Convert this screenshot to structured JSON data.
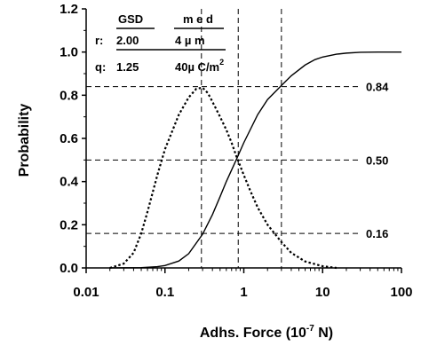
{
  "chart_data": {
    "type": "line",
    "xlabel": "Adhs. Force (10",
    "xlabel_exp": "-7",
    "xlabel_unit": " N)",
    "ylabel": "Probability",
    "x_scale": "log",
    "xlim": [
      0.01,
      100
    ],
    "ylim": [
      0.0,
      1.2
    ],
    "x_ticks": [
      "0.01",
      "0.1",
      "1",
      "10",
      "100"
    ],
    "y_ticks": [
      "0.0",
      "0.2",
      "0.4",
      "0.6",
      "0.8",
      "1.0",
      "1.2"
    ],
    "grid": false,
    "series": [
      {
        "style": "solid",
        "x": [
          0.02,
          0.05,
          0.08,
          0.1,
          0.15,
          0.2,
          0.3,
          0.4,
          0.5,
          0.6,
          0.8,
          1.0,
          1.5,
          2.0,
          3.0,
          4.0,
          6.0,
          8.0,
          10,
          15,
          20,
          30,
          50,
          100
        ],
        "y": [
          0.0,
          0.001,
          0.006,
          0.011,
          0.032,
          0.066,
          0.156,
          0.247,
          0.33,
          0.4,
          0.5,
          0.58,
          0.71,
          0.78,
          0.845,
          0.89,
          0.94,
          0.965,
          0.977,
          0.99,
          0.995,
          0.999,
          1.0,
          1.0
        ]
      },
      {
        "style": "dotted",
        "x": [
          0.02,
          0.03,
          0.04,
          0.05,
          0.06,
          0.08,
          0.1,
          0.15,
          0.2,
          0.25,
          0.3,
          0.35,
          0.4,
          0.5,
          0.6,
          0.7,
          0.8,
          1.0,
          1.2,
          1.5,
          2.0,
          3.0,
          4.0,
          6.0,
          10,
          15
        ],
        "y": [
          0.0,
          0.02,
          0.07,
          0.16,
          0.26,
          0.43,
          0.55,
          0.71,
          0.79,
          0.83,
          0.835,
          0.81,
          0.77,
          0.7,
          0.64,
          0.58,
          0.52,
          0.43,
          0.36,
          0.28,
          0.2,
          0.12,
          0.07,
          0.03,
          0.008,
          0.0
        ]
      }
    ],
    "reference_lines": {
      "horizontal": [
        {
          "y": 0.84,
          "label": "0.84"
        },
        {
          "y": 0.5,
          "label": "0.50"
        },
        {
          "y": 0.16,
          "label": "0.16"
        }
      ],
      "vertical_x": [
        0.29,
        0.85,
        3.0
      ]
    },
    "annotation_table": {
      "header_gsd": "GSD",
      "header_med": "m e d",
      "row1_label": "r:",
      "row1_gsd": "2.00",
      "row1_med": "4 µ m",
      "row2_label": "q:",
      "row2_gsd": "1.25",
      "row2_med": "40µ C/m",
      "row2_med_sup": "2"
    }
  }
}
